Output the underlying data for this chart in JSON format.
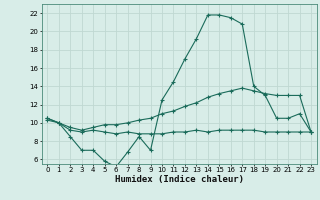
{
  "xlabel": "Humidex (Indice chaleur)",
  "ylabel": "",
  "background_color": "#d8ede8",
  "line_color": "#1a6b5a",
  "grid_color": "#c0d8d2",
  "xlim": [
    -0.5,
    23.5
  ],
  "ylim": [
    5.5,
    23.0
  ],
  "xticks": [
    0,
    1,
    2,
    3,
    4,
    5,
    6,
    7,
    8,
    9,
    10,
    11,
    12,
    13,
    14,
    15,
    16,
    17,
    18,
    19,
    20,
    21,
    22,
    23
  ],
  "yticks": [
    6,
    8,
    10,
    12,
    14,
    16,
    18,
    20,
    22
  ],
  "line1_x": [
    0,
    1,
    2,
    3,
    4,
    5,
    6,
    7,
    8,
    9,
    10,
    11,
    12,
    13,
    14,
    15,
    16,
    17,
    18,
    19,
    20,
    21,
    22,
    23
  ],
  "line1_y": [
    10.5,
    10.0,
    8.5,
    7.0,
    7.0,
    5.8,
    5.2,
    6.8,
    8.5,
    7.0,
    12.5,
    14.5,
    17.0,
    19.2,
    21.8,
    21.8,
    21.5,
    20.8,
    14.0,
    13.0,
    10.5,
    10.5,
    11.0,
    9.0
  ],
  "line2_x": [
    0,
    1,
    2,
    3,
    4,
    5,
    6,
    7,
    8,
    9,
    10,
    11,
    12,
    13,
    14,
    15,
    16,
    17,
    18,
    19,
    20,
    21,
    22,
    23
  ],
  "line2_y": [
    10.5,
    10.0,
    9.5,
    9.2,
    9.5,
    9.8,
    9.8,
    10.0,
    10.3,
    10.5,
    11.0,
    11.3,
    11.8,
    12.2,
    12.8,
    13.2,
    13.5,
    13.8,
    13.5,
    13.2,
    13.0,
    13.0,
    13.0,
    9.0
  ],
  "line3_x": [
    0,
    1,
    2,
    3,
    4,
    5,
    6,
    7,
    8,
    9,
    10,
    11,
    12,
    13,
    14,
    15,
    16,
    17,
    18,
    19,
    20,
    21,
    22,
    23
  ],
  "line3_y": [
    10.3,
    10.0,
    9.2,
    9.0,
    9.2,
    9.0,
    8.8,
    9.0,
    8.8,
    8.8,
    8.8,
    9.0,
    9.0,
    9.2,
    9.0,
    9.2,
    9.2,
    9.2,
    9.2,
    9.0,
    9.0,
    9.0,
    9.0,
    9.0
  ]
}
